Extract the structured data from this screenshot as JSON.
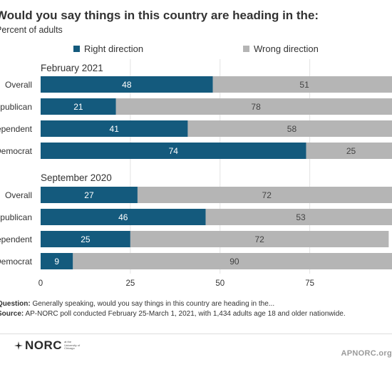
{
  "chart_data": {
    "type": "bar",
    "orientation": "horizontal",
    "stacked": true,
    "title": "Would you say things in this country are heading in the:",
    "subtitle": "Percent of adults",
    "legend": {
      "placement": "top",
      "entries": [
        "Right direction",
        "Wrong direction"
      ]
    },
    "colors": {
      "Right direction": "#145a7d",
      "Wrong direction": "#b5b5b5"
    },
    "xlim": [
      0,
      100
    ],
    "xticks": [
      0,
      25,
      50,
      75
    ],
    "grid": true,
    "groups": [
      {
        "label": "February 2021",
        "categories": [
          "Overall",
          "Republican",
          "Independent",
          "Democrat"
        ],
        "series": [
          {
            "name": "Right direction",
            "values": [
              48,
              21,
              41,
              74
            ]
          },
          {
            "name": "Wrong direction",
            "values": [
              51,
              78,
              58,
              25
            ]
          }
        ]
      },
      {
        "label": "September 2020",
        "categories": [
          "Overall",
          "Republican",
          "Independent",
          "Democrat"
        ],
        "series": [
          {
            "name": "Right direction",
            "values": [
              27,
              46,
              25,
              9
            ]
          },
          {
            "name": "Wrong direction",
            "values": [
              72,
              53,
              72,
              90
            ]
          }
        ]
      }
    ]
  },
  "footer": {
    "question_label": "Question:",
    "question_text": "Generally speaking, would you say things in this country are heading in the...",
    "source_label": "Source:",
    "source_text": "AP-NORC poll conducted February 25-March 1, 2021, with 1,434 adults age 18 and older nationwide."
  },
  "brand": {
    "logo_text": "NORC",
    "logo_small_text": "at the University of Chicago",
    "ap_mark": "APNORC.org"
  }
}
